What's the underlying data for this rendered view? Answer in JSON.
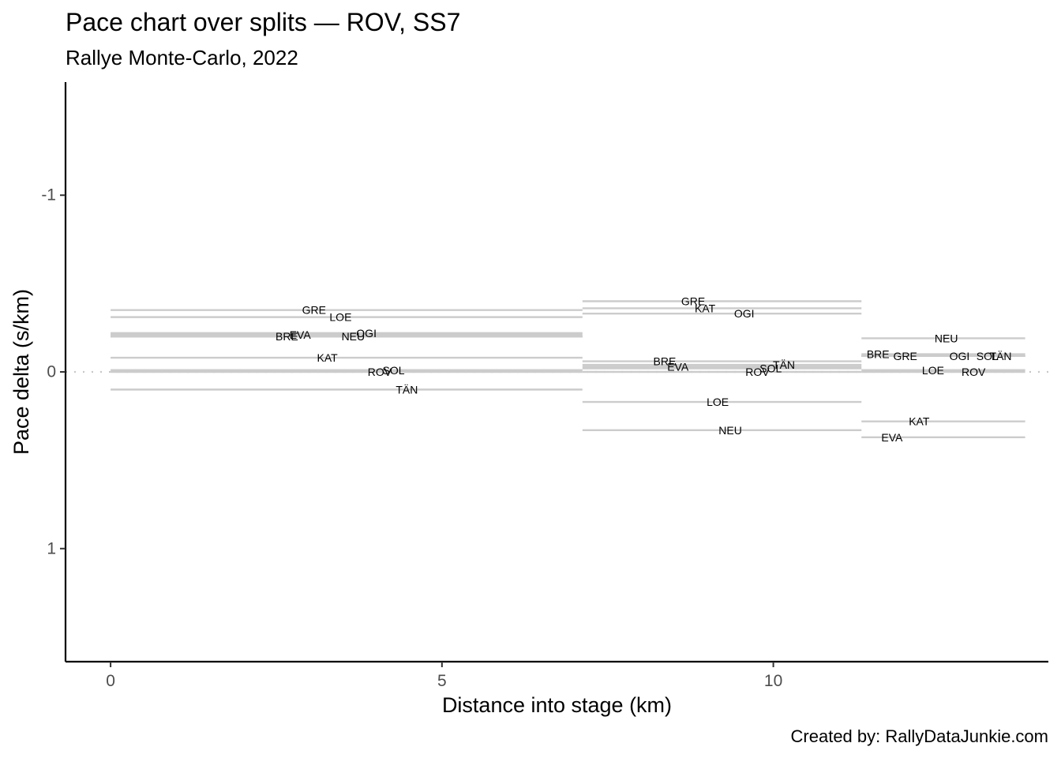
{
  "chart_data": {
    "type": "line",
    "title": "Pace chart over splits — ROV, SS7",
    "subtitle": "Rallye Monte-Carlo, 2022",
    "xlabel": "Distance into stage (km)",
    "ylabel": "Pace delta (s/km)",
    "caption": "Created by: RallyDataJunkie.com",
    "x_ticks": [
      0,
      5,
      10
    ],
    "x_tick_labels": [
      "0",
      "5",
      "10"
    ],
    "y_ticks": [
      -1,
      0,
      1
    ],
    "y_tick_labels": [
      "-1",
      "0",
      "1"
    ],
    "xlim": [
      -0.68,
      14.15
    ],
    "ylim": [
      1.64,
      -1.64
    ],
    "y_reversed": true,
    "zero_line": "dotted",
    "grid": false,
    "split_boundaries_km": [
      0,
      7.12,
      11.33,
      13.8
    ],
    "series": [
      {
        "name": "GRE",
        "values": [
          -0.35,
          -0.4,
          -0.09
        ]
      },
      {
        "name": "LOE",
        "values": [
          -0.31,
          0.17,
          -0.01
        ]
      },
      {
        "name": "OGI",
        "values": [
          -0.22,
          -0.33,
          -0.09
        ]
      },
      {
        "name": "NEU",
        "values": [
          -0.2,
          0.33,
          -0.19
        ]
      },
      {
        "name": "EVA",
        "values": [
          -0.21,
          -0.03,
          0.37
        ]
      },
      {
        "name": "BRE",
        "values": [
          -0.2,
          -0.06,
          -0.1
        ]
      },
      {
        "name": "KAT",
        "values": [
          -0.08,
          -0.36,
          0.28
        ]
      },
      {
        "name": "ROV",
        "values": [
          0,
          0,
          0
        ]
      },
      {
        "name": "SOL",
        "values": [
          -0.01,
          -0.02,
          -0.09
        ]
      },
      {
        "name": "TÄN",
        "values": [
          0.1,
          -0.04,
          -0.09
        ]
      }
    ],
    "label_positions_km": {
      "GRE": [
        3.07,
        8.79,
        11.99
      ],
      "LOE": [
        3.47,
        9.16,
        12.41
      ],
      "OGI": [
        3.86,
        9.56,
        12.81
      ],
      "NEU": [
        3.66,
        9.35,
        12.61
      ],
      "EVA": [
        2.86,
        8.56,
        11.79
      ],
      "BRE": [
        2.66,
        8.36,
        11.58
      ],
      "KAT": [
        3.27,
        8.97,
        12.2
      ],
      "ROV": [
        4.06,
        9.76,
        13.02
      ],
      "SOL": [
        4.27,
        9.96,
        13.23
      ],
      "TÄN": [
        4.47,
        10.16,
        13.43
      ]
    }
  }
}
